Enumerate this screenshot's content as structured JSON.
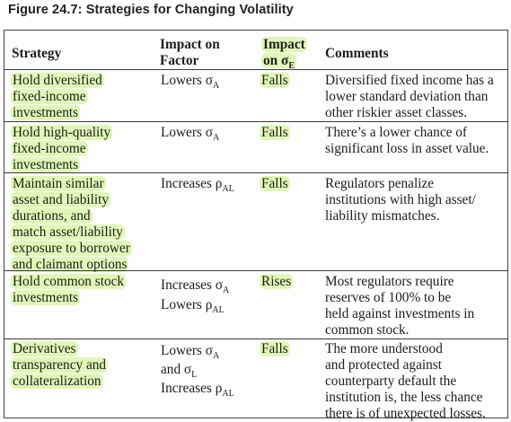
{
  "figure": {
    "title": "Figure 24.7: Strategies for Changing Volatility"
  },
  "headers": {
    "strategy": "Strategy",
    "impact_factor": [
      "Impact on",
      "Factor"
    ],
    "impact_e": [
      "Impact",
      "on σ",
      "E"
    ],
    "comments": "Comments"
  },
  "rows": [
    {
      "strategy": [
        "Hold diversified",
        "fixed-income",
        "investments"
      ],
      "impact_factor": [
        {
          "pre": "Lowers σ",
          "sub": "A"
        }
      ],
      "impact_e": "Falls",
      "comments": [
        "Diversified fixed income has a",
        "lower standard deviation than",
        "other riskier asset classes."
      ]
    },
    {
      "strategy": [
        "Hold high-quality",
        "fixed-income",
        "investments"
      ],
      "impact_factor": [
        {
          "pre": "Lowers σ",
          "sub": "A"
        }
      ],
      "impact_e": "Falls",
      "comments": [
        "There’s a lower chance of",
        "significant loss in asset value."
      ]
    },
    {
      "strategy": [
        "Maintain similar",
        "asset and liability",
        "durations, and",
        "match asset/liability",
        "exposure to borrower",
        "and claimant options"
      ],
      "impact_factor": [
        {
          "pre": "Increases ρ",
          "sub": "AL"
        }
      ],
      "impact_e": "Falls",
      "comments": [
        "Regulators penalize",
        "institutions with high asset/",
        "liability mismatches."
      ]
    },
    {
      "strategy": [
        "Hold common stock",
        "investments"
      ],
      "impact_factor": [
        {
          "pre": "Increases σ",
          "sub": "A"
        },
        {
          "pre": "Lowers ρ",
          "sub": "AL"
        }
      ],
      "impact_e": "Rises",
      "comments": [
        "Most regulators require",
        "reserves of 100% to be",
        "held against investments in",
        "common stock."
      ]
    },
    {
      "strategy": [
        "Derivatives",
        "transparency and",
        "collateralization"
      ],
      "impact_factor": [
        {
          "pre": "Lowers σ",
          "sub": "A"
        },
        {
          "pre": "and σ",
          "sub": "L"
        },
        {
          "pre": "Increases ρ",
          "sub": "AL"
        }
      ],
      "impact_e": "Falls",
      "comments": [
        "The more understood",
        "and protected against",
        "counterparty default the",
        "institution is, the less chance",
        "there is of unexpected losses."
      ]
    }
  ]
}
